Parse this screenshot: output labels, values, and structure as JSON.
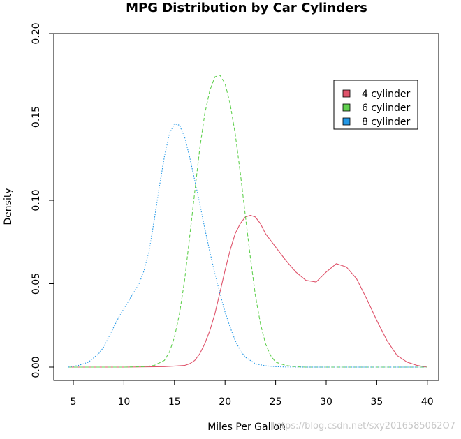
{
  "chart_data": {
    "type": "line",
    "title": "MPG Distribution by Car Cylinders",
    "xlabel": "Miles Per Gallon",
    "ylabel": "Density",
    "xlim": [
      4.5,
      40
    ],
    "ylim": [
      0,
      0.2
    ],
    "x_ticks": [
      5,
      10,
      15,
      20,
      25,
      30,
      35,
      40
    ],
    "y_ticks": [
      0.0,
      0.05,
      0.1,
      0.15,
      0.2
    ],
    "y_tick_labels": [
      "0.00",
      "0.05",
      "0.10",
      "0.15",
      "0.20"
    ],
    "legend_position": "top-right",
    "series": [
      {
        "name": "4 cylinder",
        "color": "#DF536B",
        "dash": "solid",
        "x": [
          4.5,
          10,
          14,
          16,
          16.5,
          17,
          17.5,
          18,
          18.5,
          19,
          19.5,
          20,
          20.5,
          21,
          21.5,
          22,
          22.5,
          23,
          23.5,
          24,
          25,
          26,
          27,
          28,
          29,
          30,
          31,
          32,
          33,
          34,
          35,
          36,
          37,
          38,
          39,
          40
        ],
        "values": [
          0.0,
          0.0,
          0.0003,
          0.001,
          0.002,
          0.004,
          0.008,
          0.014,
          0.022,
          0.032,
          0.045,
          0.058,
          0.07,
          0.08,
          0.086,
          0.09,
          0.091,
          0.09,
          0.086,
          0.08,
          0.072,
          0.064,
          0.057,
          0.052,
          0.051,
          0.057,
          0.062,
          0.06,
          0.053,
          0.041,
          0.028,
          0.016,
          0.007,
          0.003,
          0.001,
          0.0
        ]
      },
      {
        "name": "6 cylinder",
        "color": "#61D04F",
        "dash": "dashed",
        "x": [
          4.5,
          10,
          12,
          13,
          14,
          14.5,
          15,
          15.5,
          16,
          16.5,
          17,
          17.5,
          18,
          18.5,
          19,
          19.5,
          20,
          20.5,
          21,
          21.5,
          22,
          22.5,
          23,
          23.5,
          24,
          24.5,
          25,
          26,
          27,
          28,
          30,
          35,
          40
        ],
        "values": [
          0.0,
          0.0,
          0.0003,
          0.001,
          0.004,
          0.009,
          0.018,
          0.032,
          0.052,
          0.078,
          0.105,
          0.131,
          0.152,
          0.166,
          0.174,
          0.175,
          0.17,
          0.158,
          0.14,
          0.117,
          0.091,
          0.066,
          0.043,
          0.026,
          0.014,
          0.007,
          0.003,
          0.001,
          0.0002,
          0.0,
          0.0,
          0.0,
          0.0
        ]
      },
      {
        "name": "8 cylinder",
        "color": "#2297E6",
        "dash": "dotted",
        "x": [
          4.5,
          5.5,
          6.5,
          7.5,
          8,
          8.5,
          9,
          9.5,
          10,
          10.5,
          11,
          11.5,
          12,
          12.5,
          13,
          13.5,
          14,
          14.5,
          15,
          15.5,
          16,
          16.5,
          17,
          17.5,
          18,
          18.5,
          19,
          19.5,
          20,
          20.5,
          21,
          21.5,
          22,
          22.5,
          23,
          24,
          25,
          26,
          28,
          32,
          40
        ],
        "values": [
          0.0,
          0.001,
          0.003,
          0.008,
          0.012,
          0.018,
          0.024,
          0.03,
          0.035,
          0.04,
          0.045,
          0.05,
          0.058,
          0.07,
          0.088,
          0.108,
          0.126,
          0.14,
          0.146,
          0.145,
          0.138,
          0.126,
          0.112,
          0.098,
          0.083,
          0.069,
          0.056,
          0.044,
          0.033,
          0.024,
          0.016,
          0.01,
          0.006,
          0.004,
          0.002,
          0.0008,
          0.0003,
          0.0001,
          0.0,
          0.0,
          0.0
        ]
      }
    ]
  },
  "watermark": "https://blog.csdn.net/sxy2016585062O7"
}
